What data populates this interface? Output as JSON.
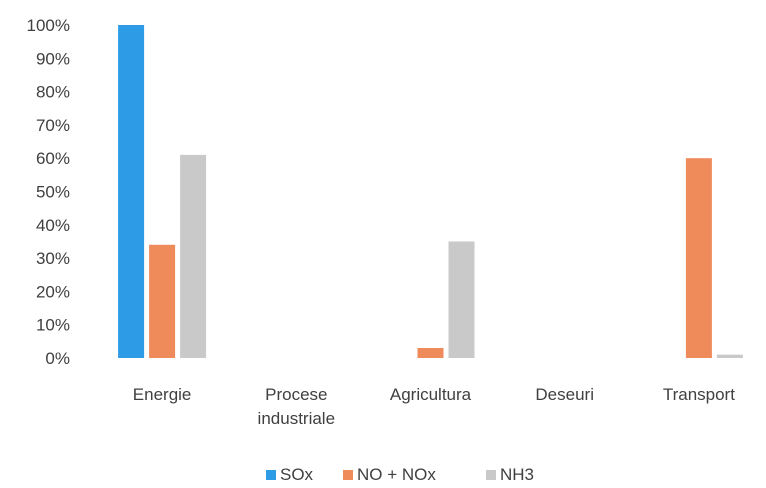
{
  "chart_data": {
    "type": "bar",
    "categories": [
      [
        "Energie"
      ],
      [
        "Procese",
        "industriale"
      ],
      [
        "Agricultura"
      ],
      [
        "Deseuri"
      ],
      [
        "Transport"
      ]
    ],
    "series": [
      {
        "name": "SOx",
        "color": "#2e9be6",
        "values": [
          100,
          0,
          0,
          0,
          0
        ]
      },
      {
        "name": "NO + NOx",
        "color": "#ef8a5a",
        "values": [
          34,
          0,
          3,
          0,
          60
        ]
      },
      {
        "name": "NH3",
        "color": "#c9c9c9",
        "values": [
          61,
          0,
          35,
          0,
          1
        ]
      }
    ],
    "yticks": [
      "0%",
      "10%",
      "20%",
      "30%",
      "40%",
      "50%",
      "60%",
      "70%",
      "80%",
      "90%",
      "100%"
    ],
    "ylim": [
      0,
      100
    ],
    "grid": false,
    "legend_position": "bottom"
  }
}
